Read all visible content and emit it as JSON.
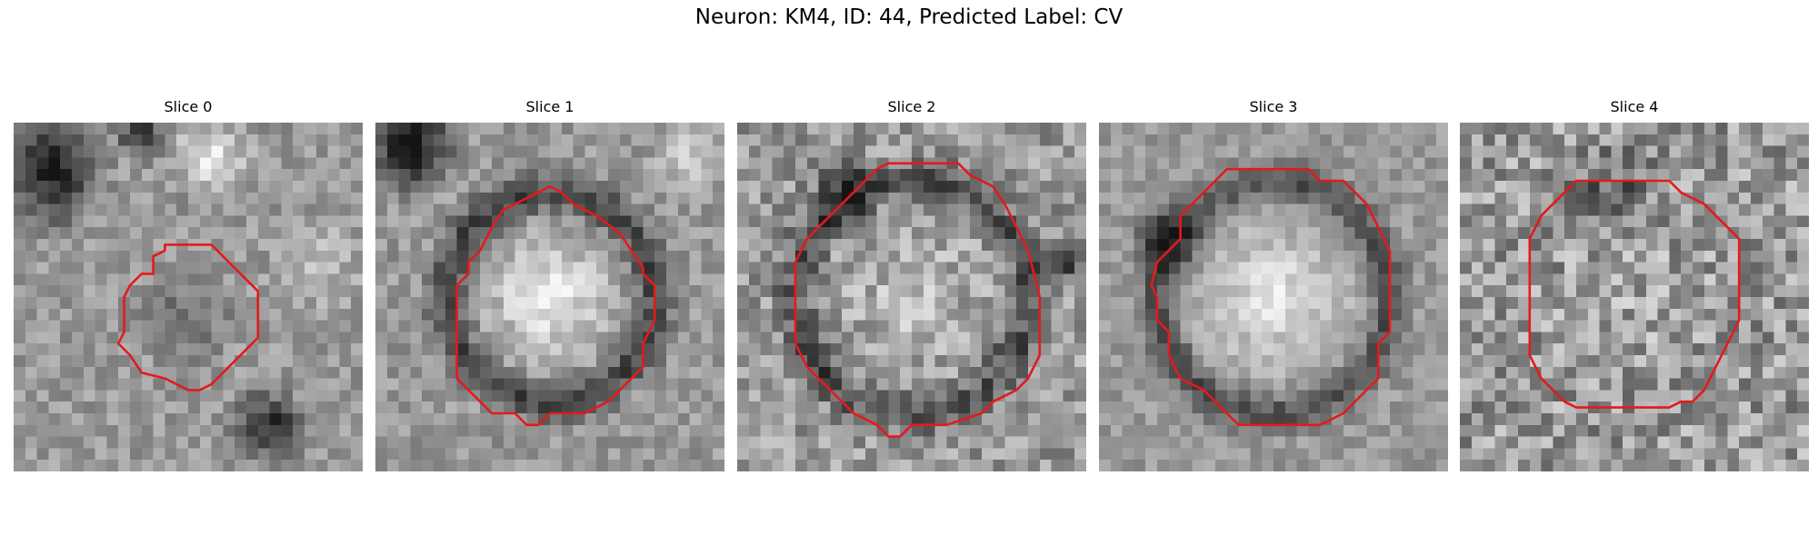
{
  "figure": {
    "title": "Neuron: KM4, ID: 44, Predicted Label: CV",
    "grid_size": 30,
    "contour_color": "#e31a1c",
    "colormap": "grayscale"
  },
  "panels": [
    {
      "label": "Slice 0",
      "noise": 0.12,
      "contour": [
        [
          13,
          10.5
        ],
        [
          17,
          10.5
        ],
        [
          18,
          11.5
        ],
        [
          20,
          13.5
        ],
        [
          21,
          14.5
        ],
        [
          21,
          18.5
        ],
        [
          19,
          20.5
        ],
        [
          17,
          22.5
        ],
        [
          16,
          23
        ],
        [
          15,
          23
        ],
        [
          14,
          22.5
        ],
        [
          13,
          22
        ],
        [
          11,
          21.5
        ],
        [
          10,
          20
        ],
        [
          9,
          19
        ],
        [
          9.5,
          18
        ],
        [
          9.5,
          15
        ],
        [
          10,
          14
        ],
        [
          11,
          13
        ],
        [
          12,
          13
        ],
        [
          12,
          11.5
        ],
        [
          13,
          11
        ]
      ],
      "blobs": [
        {
          "cx": 3,
          "cy": 4,
          "r": 6,
          "v": -0.55
        },
        {
          "cx": 11,
          "cy": 1,
          "r": 3,
          "v": -0.4
        },
        {
          "cx": 17,
          "cy": 3,
          "r": 4,
          "v": 0.35
        },
        {
          "cx": 15,
          "cy": 17,
          "r": 5,
          "v": -0.2
        },
        {
          "cx": 22,
          "cy": 26,
          "r": 4,
          "v": -0.45
        },
        {
          "cx": 26,
          "cy": 12,
          "r": 5,
          "v": 0.15
        }
      ]
    },
    {
      "label": "Slice 1",
      "noise": 0.12,
      "contour": [
        [
          10,
          9
        ],
        [
          11,
          7.5
        ],
        [
          12,
          7
        ],
        [
          13,
          6.5
        ],
        [
          14,
          6
        ],
        [
          15,
          5.5
        ],
        [
          16,
          6
        ],
        [
          17,
          7
        ],
        [
          19,
          8
        ],
        [
          21,
          9.5
        ],
        [
          22,
          11
        ],
        [
          23,
          12.5
        ],
        [
          23,
          13
        ],
        [
          24,
          14
        ],
        [
          24,
          17
        ],
        [
          23,
          19
        ],
        [
          23,
          21
        ],
        [
          22,
          22
        ],
        [
          21,
          23
        ],
        [
          20,
          24
        ],
        [
          18,
          25
        ],
        [
          15,
          25
        ],
        [
          14,
          26
        ],
        [
          13,
          26
        ],
        [
          12,
          25
        ],
        [
          10,
          25
        ],
        [
          8,
          23
        ],
        [
          7,
          22
        ],
        [
          7,
          14
        ],
        [
          8,
          13
        ],
        [
          8,
          12
        ],
        [
          9,
          11
        ],
        [
          9.5,
          10
        ]
      ],
      "blobs": [
        {
          "cx": 3,
          "cy": 2,
          "r": 5,
          "v": -0.6
        },
        {
          "cx": 15,
          "cy": 15,
          "r": 11,
          "v": -0.35,
          "ring": 9
        },
        {
          "cx": 15,
          "cy": 15,
          "r": 7,
          "v": 0.35
        },
        {
          "cx": 27,
          "cy": 3,
          "r": 4,
          "v": 0.2
        }
      ]
    },
    {
      "label": "Slice 2",
      "noise": 0.18,
      "contour": [
        [
          12,
          4
        ],
        [
          13,
          3.5
        ],
        [
          19,
          3.5
        ],
        [
          20,
          4.5
        ],
        [
          22,
          5.5
        ],
        [
          23,
          7
        ],
        [
          24,
          9
        ],
        [
          25,
          11
        ],
        [
          25.5,
          13
        ],
        [
          26,
          15
        ],
        [
          26,
          20
        ],
        [
          25,
          22
        ],
        [
          24,
          23
        ],
        [
          22,
          24
        ],
        [
          21,
          25
        ],
        [
          18,
          26
        ],
        [
          15,
          26
        ],
        [
          14,
          27
        ],
        [
          13,
          27
        ],
        [
          12,
          26
        ],
        [
          10,
          25
        ],
        [
          9,
          24
        ],
        [
          8,
          23
        ],
        [
          7,
          22
        ],
        [
          6,
          21
        ],
        [
          5,
          19
        ],
        [
          5,
          12
        ],
        [
          6,
          10
        ],
        [
          7,
          9
        ],
        [
          8,
          8
        ],
        [
          9,
          7
        ],
        [
          10,
          6
        ],
        [
          11,
          5
        ]
      ],
      "blobs": [
        {
          "cx": 15,
          "cy": 15,
          "r": 12,
          "v": -0.3,
          "ring": 10
        },
        {
          "cx": 9,
          "cy": 6,
          "r": 4,
          "v": -0.3
        },
        {
          "cx": 28,
          "cy": 12,
          "r": 3,
          "v": -0.35
        },
        {
          "cx": 15,
          "cy": 15,
          "r": 8,
          "v": 0.15
        }
      ]
    },
    {
      "label": "Slice 3",
      "noise": 0.1,
      "contour": [
        [
          11,
          4
        ],
        [
          18,
          4
        ],
        [
          19,
          5
        ],
        [
          21,
          5
        ],
        [
          23,
          7
        ],
        [
          24,
          9
        ],
        [
          25,
          11
        ],
        [
          25,
          18
        ],
        [
          24,
          19
        ],
        [
          24,
          22
        ],
        [
          23,
          23
        ],
        [
          21,
          25
        ],
        [
          19,
          26
        ],
        [
          12,
          26
        ],
        [
          10,
          24
        ],
        [
          9,
          23
        ],
        [
          7,
          22
        ],
        [
          6,
          20
        ],
        [
          6,
          18
        ],
        [
          5,
          17
        ],
        [
          5,
          15
        ],
        [
          4.5,
          14
        ],
        [
          5,
          12
        ],
        [
          6,
          11
        ],
        [
          7,
          10
        ],
        [
          7,
          8
        ],
        [
          8,
          7
        ],
        [
          9,
          6
        ],
        [
          10,
          5
        ]
      ],
      "blobs": [
        {
          "cx": 15,
          "cy": 15,
          "r": 12,
          "v": -0.3,
          "ring": 10
        },
        {
          "cx": 6,
          "cy": 10,
          "r": 4,
          "v": -0.35
        },
        {
          "cx": 15,
          "cy": 15,
          "r": 9,
          "v": 0.3
        }
      ]
    },
    {
      "label": "Slice 4",
      "noise": 0.22,
      "contour": [
        [
          10,
          5
        ],
        [
          18,
          5
        ],
        [
          19,
          6
        ],
        [
          21,
          7
        ],
        [
          22,
          8
        ],
        [
          23,
          9
        ],
        [
          24,
          10
        ],
        [
          24,
          17
        ],
        [
          23,
          19
        ],
        [
          22,
          21
        ],
        [
          21,
          23
        ],
        [
          20,
          24
        ],
        [
          19,
          24
        ],
        [
          18,
          24.5
        ],
        [
          17,
          24.5
        ],
        [
          10,
          24.5
        ],
        [
          9,
          24
        ],
        [
          8,
          23
        ],
        [
          7,
          22
        ],
        [
          6,
          20
        ],
        [
          6,
          19
        ],
        [
          6,
          10
        ],
        [
          7,
          8
        ],
        [
          8,
          7
        ],
        [
          9,
          6
        ]
      ],
      "blobs": [
        {
          "cx": 13,
          "cy": 6,
          "r": 5,
          "v": -0.25
        },
        {
          "cx": 15,
          "cy": 15,
          "r": 8,
          "v": 0.05
        }
      ]
    }
  ]
}
